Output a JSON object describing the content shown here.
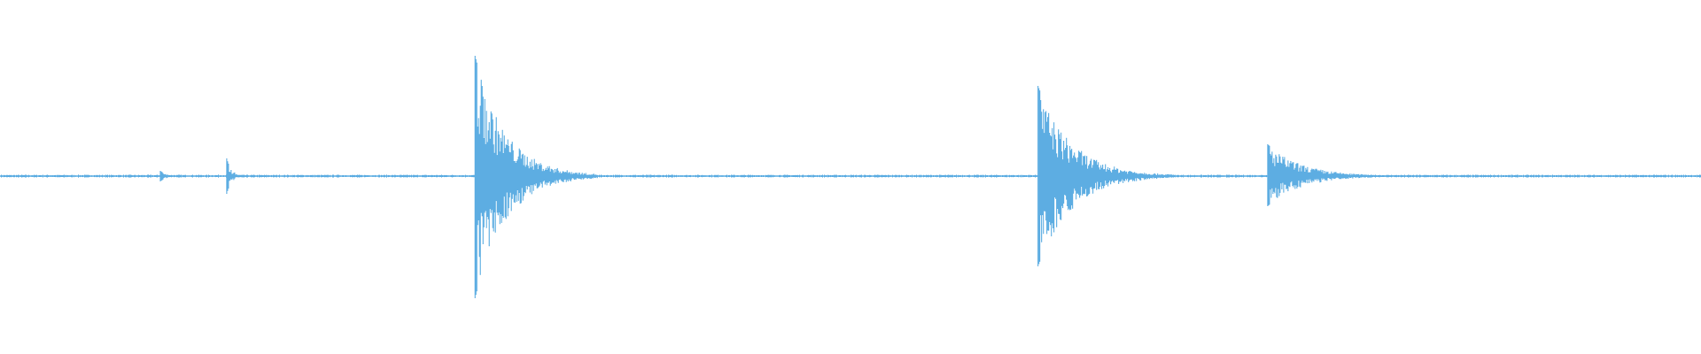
{
  "chart_data": {
    "type": "area",
    "description_kind": "audio-waveform",
    "color": "#5dade2",
    "background": "#ffffff",
    "amplitude_range": [
      -1,
      1
    ],
    "axes_visible": false,
    "grid": false,
    "noise_floor": 0.006,
    "events": [
      {
        "time_fraction": 0.094,
        "peak_up": 0.03,
        "peak_down": 0.03,
        "decay": 0.004
      },
      {
        "time_fraction": 0.133,
        "peak_up": 0.1,
        "peak_down": 0.1,
        "decay": 0.003
      },
      {
        "time_fraction": 0.279,
        "peak_up": 0.68,
        "peak_down": 0.69,
        "decay": 0.018
      },
      {
        "time_fraction": 0.61,
        "peak_up": 0.51,
        "peak_down": 0.51,
        "decay": 0.02
      },
      {
        "time_fraction": 0.745,
        "peak_up": 0.18,
        "peak_down": 0.17,
        "decay": 0.02
      }
    ]
  }
}
